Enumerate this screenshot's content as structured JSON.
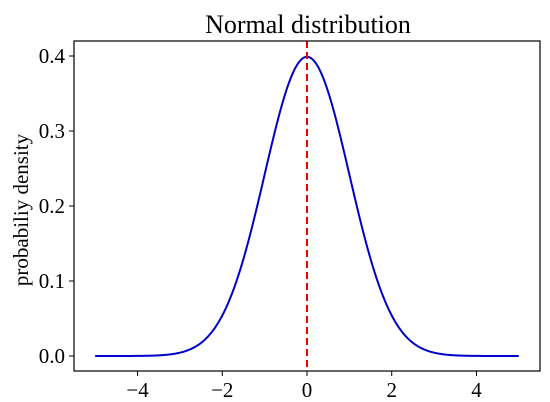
{
  "chart_data": {
    "type": "line",
    "title": "Normal distribution",
    "xlabel": "",
    "ylabel": "probabiliy density",
    "xlim": [
      -5.5,
      5.5
    ],
    "ylim": [
      -0.02,
      0.42
    ],
    "xticks": [
      -4,
      -2,
      0,
      2,
      4
    ],
    "xtick_labels": [
      "−4",
      "−2",
      "0",
      "2",
      "4"
    ],
    "yticks": [
      0.0,
      0.1,
      0.2,
      0.3,
      0.4
    ],
    "ytick_labels": [
      "0.0",
      "0.1",
      "0.2",
      "0.3",
      "0.4"
    ],
    "grid": false,
    "series": [
      {
        "color": "#0000cc",
        "style": "solid",
        "x_range": [
          -5,
          5
        ],
        "x": [
          -5,
          -4.5,
          -4,
          -3.5,
          -3,
          -2.75,
          -2.5,
          -2.25,
          -2,
          -1.75,
          -1.5,
          -1.25,
          -1,
          -0.75,
          -0.5,
          -0.25,
          0,
          0.25,
          0.5,
          0.75,
          1,
          1.25,
          1.5,
          1.75,
          2,
          2.25,
          2.5,
          2.75,
          3,
          3.5,
          4,
          4.5,
          5
        ],
        "y": [
          0.0,
          0.0,
          0.0001,
          0.0009,
          0.0044,
          0.0091,
          0.0175,
          0.0317,
          0.054,
          0.0863,
          0.1295,
          0.1826,
          0.242,
          0.3011,
          0.3521,
          0.3867,
          0.3989,
          0.3867,
          0.3521,
          0.3011,
          0.242,
          0.1826,
          0.1295,
          0.0863,
          0.054,
          0.0317,
          0.0175,
          0.0091,
          0.0044,
          0.0009,
          0.0001,
          0.0,
          0.0
        ]
      }
    ],
    "annotations": [
      {
        "type": "vline",
        "x": 0,
        "color": "#ee0000",
        "style": "dashed"
      }
    ]
  }
}
